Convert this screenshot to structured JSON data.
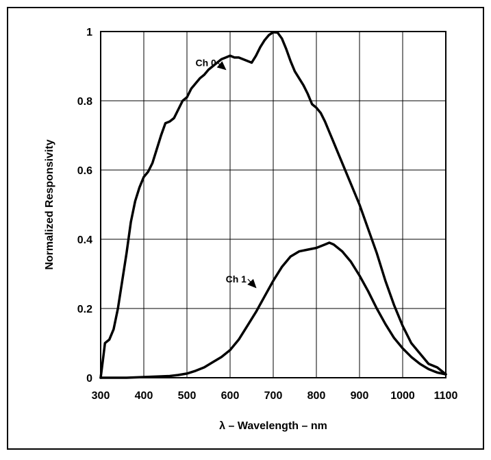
{
  "chart_data": {
    "type": "line",
    "title": "",
    "xlabel": "λ – Wavelength – nm",
    "ylabel": "Normalized Responsivity",
    "xlim": [
      300,
      1100
    ],
    "ylim": [
      0,
      1
    ],
    "grid": true,
    "legend": "none",
    "x_ticks": [
      {
        "value": 300,
        "label": "300"
      },
      {
        "value": 400,
        "label": "400"
      },
      {
        "value": 500,
        "label": "500"
      },
      {
        "value": 600,
        "label": "600"
      },
      {
        "value": 700,
        "label": "700"
      },
      {
        "value": 800,
        "label": "800"
      },
      {
        "value": 900,
        "label": "900"
      },
      {
        "value": 1000,
        "label": "1000"
      },
      {
        "value": 1100,
        "label": "1100"
      }
    ],
    "y_ticks": [
      {
        "value": 0,
        "label": "0"
      },
      {
        "value": 0.2,
        "label": "0.2"
      },
      {
        "value": 0.4,
        "label": "0.4"
      },
      {
        "value": 0.6,
        "label": "0.6"
      },
      {
        "value": 0.8,
        "label": "0.8"
      },
      {
        "value": 1,
        "label": "1"
      }
    ],
    "series": [
      {
        "name": "Ch 0",
        "label_text": "Ch 0",
        "label_at": [
          568,
          0.9
        ],
        "arrow_at": [
          590,
          0.89
        ],
        "x": [
          300,
          305,
          310,
          320,
          330,
          340,
          350,
          360,
          370,
          380,
          390,
          400,
          410,
          420,
          430,
          440,
          450,
          460,
          470,
          480,
          490,
          500,
          510,
          520,
          530,
          540,
          550,
          560,
          570,
          580,
          590,
          600,
          610,
          620,
          630,
          640,
          650,
          660,
          670,
          680,
          690,
          700,
          710,
          720,
          730,
          740,
          750,
          760,
          770,
          780,
          790,
          800,
          810,
          820,
          830,
          840,
          850,
          860,
          880,
          900,
          920,
          940,
          960,
          980,
          1000,
          1020,
          1040,
          1060,
          1080,
          1100
        ],
        "y": [
          0,
          0.05,
          0.1,
          0.11,
          0.14,
          0.2,
          0.28,
          0.36,
          0.45,
          0.51,
          0.55,
          0.58,
          0.595,
          0.62,
          0.66,
          0.7,
          0.735,
          0.74,
          0.75,
          0.775,
          0.8,
          0.81,
          0.835,
          0.85,
          0.865,
          0.875,
          0.89,
          0.9,
          0.91,
          0.92,
          0.925,
          0.93,
          0.925,
          0.925,
          0.92,
          0.915,
          0.91,
          0.93,
          0.955,
          0.975,
          0.99,
          0.998,
          0.997,
          0.98,
          0.95,
          0.915,
          0.885,
          0.865,
          0.845,
          0.82,
          0.79,
          0.78,
          0.765,
          0.74,
          0.71,
          0.68,
          0.65,
          0.62,
          0.56,
          0.5,
          0.43,
          0.36,
          0.28,
          0.21,
          0.15,
          0.1,
          0.07,
          0.04,
          0.03,
          0.01
        ]
      },
      {
        "name": "Ch 1",
        "label_text": "Ch 1",
        "label_at": [
          638,
          0.275
        ],
        "arrow_at": [
          660,
          0.26
        ],
        "x": [
          300,
          320,
          340,
          360,
          380,
          400,
          420,
          440,
          460,
          480,
          500,
          520,
          540,
          560,
          580,
          600,
          620,
          640,
          660,
          680,
          700,
          720,
          740,
          760,
          780,
          800,
          820,
          830,
          840,
          860,
          880,
          900,
          920,
          940,
          960,
          980,
          1000,
          1020,
          1040,
          1060,
          1080,
          1100
        ],
        "y": [
          0,
          0,
          0,
          0,
          0.001,
          0.002,
          0.003,
          0.004,
          0.005,
          0.008,
          0.012,
          0.02,
          0.03,
          0.045,
          0.06,
          0.08,
          0.11,
          0.15,
          0.19,
          0.235,
          0.28,
          0.32,
          0.35,
          0.365,
          0.37,
          0.375,
          0.385,
          0.39,
          0.385,
          0.365,
          0.335,
          0.295,
          0.25,
          0.2,
          0.155,
          0.115,
          0.085,
          0.06,
          0.04,
          0.025,
          0.015,
          0.01
        ]
      }
    ]
  }
}
